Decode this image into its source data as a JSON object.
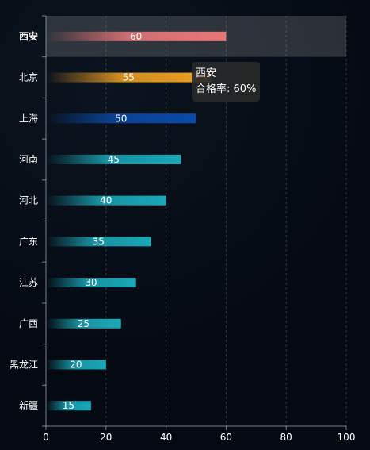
{
  "chart_data": {
    "type": "bar",
    "orientation": "horizontal",
    "categories": [
      "西安",
      "北京",
      "上海",
      "河南",
      "河北",
      "广东",
      "江苏",
      "广西",
      "黑龙江",
      "新疆"
    ],
    "values": [
      60,
      55,
      50,
      45,
      40,
      35,
      30,
      25,
      20,
      15
    ],
    "xlim": [
      0,
      100
    ],
    "x_ticks": [
      0,
      20,
      40,
      60,
      80,
      100
    ],
    "grid": "vertical-dashed",
    "highlighted_category": "西安",
    "bar_colors": [
      "#e8787a",
      "#f0a020",
      "#0a4aa8",
      "#1aa8b8",
      "#1aa8b8",
      "#1aa8b8",
      "#1aa8b8",
      "#1aa8b8",
      "#1aa8b8",
      "#1aa8b8"
    ]
  },
  "tooltip": {
    "title": "西安",
    "label": "合格率",
    "value": "60%"
  }
}
